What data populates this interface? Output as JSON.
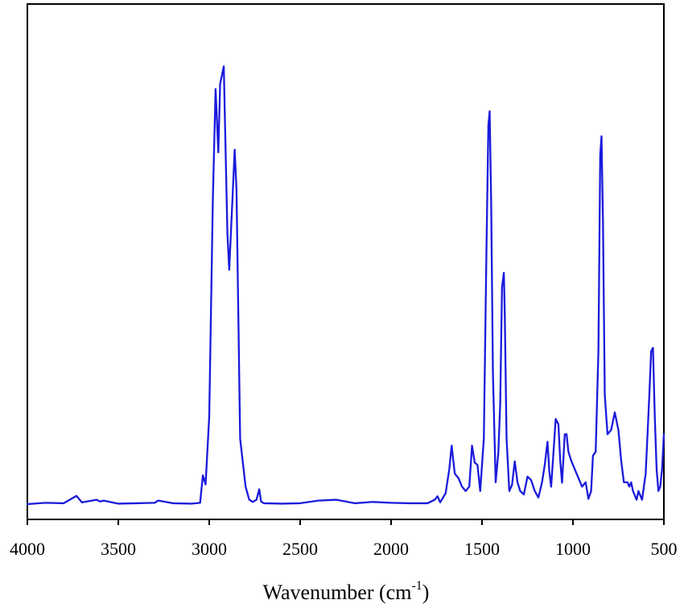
{
  "chart_data": {
    "type": "line",
    "xlabel": "Wavenumber (cm",
    "xlabel_sup": "-1",
    "xlabel_close": ")",
    "ylabel": "",
    "title": "",
    "x_reversed": true,
    "xlim": [
      4000,
      500
    ],
    "ylim": [
      0,
      1
    ],
    "x_ticks": [
      4000,
      3500,
      3000,
      2500,
      2000,
      1500,
      1000,
      500
    ],
    "x_tick_labels": [
      "4000",
      "3500",
      "3000",
      "2500",
      "2000",
      "1500",
      "1000",
      "500"
    ],
    "y_ticks_shown": false,
    "grid": false,
    "series": [
      {
        "color": "#1a1adc",
        "x": [
          4000,
          3900,
          3800,
          3730,
          3700,
          3620,
          3600,
          3580,
          3500,
          3400,
          3300,
          3280,
          3200,
          3100,
          3050,
          3035,
          3020,
          3000,
          2980,
          2965,
          2950,
          2940,
          2920,
          2900,
          2890,
          2870,
          2860,
          2850,
          2830,
          2800,
          2780,
          2760,
          2740,
          2725,
          2715,
          2700,
          2600,
          2500,
          2400,
          2300,
          2200,
          2100,
          2000,
          1900,
          1800,
          1760,
          1745,
          1730,
          1700,
          1680,
          1667,
          1650,
          1630,
          1610,
          1590,
          1570,
          1555,
          1540,
          1525,
          1510,
          1490,
          1475,
          1465,
          1458,
          1450,
          1440,
          1425,
          1410,
          1400,
          1390,
          1380,
          1375,
          1365,
          1350,
          1335,
          1320,
          1305,
          1290,
          1270,
          1250,
          1230,
          1210,
          1190,
          1170,
          1155,
          1140,
          1130,
          1120,
          1110,
          1095,
          1080,
          1070,
          1060,
          1045,
          1035,
          1025,
          1010,
          990,
          970,
          950,
          930,
          915,
          900,
          890,
          875,
          860,
          850,
          843,
          835,
          825,
          810,
          790,
          770,
          750,
          735,
          720,
          700,
          690,
          680,
          670,
          660,
          650,
          640,
          620,
          600,
          580,
          570,
          560,
          550,
          540,
          530,
          520,
          510,
          500
        ],
        "y": [
          0.0,
          0.003,
          0.002,
          0.019,
          0.004,
          0.01,
          0.006,
          0.008,
          0.001,
          0.002,
          0.003,
          0.008,
          0.002,
          0.001,
          0.003,
          0.066,
          0.045,
          0.2,
          0.7,
          0.951,
          0.806,
          0.963,
          1.003,
          0.62,
          0.537,
          0.72,
          0.812,
          0.72,
          0.15,
          0.04,
          0.01,
          0.005,
          0.01,
          0.034,
          0.006,
          0.002,
          0.001,
          0.002,
          0.008,
          0.01,
          0.002,
          0.005,
          0.003,
          0.002,
          0.002,
          0.01,
          0.018,
          0.004,
          0.025,
          0.08,
          0.134,
          0.07,
          0.06,
          0.04,
          0.03,
          0.04,
          0.134,
          0.095,
          0.09,
          0.03,
          0.15,
          0.6,
          0.868,
          0.9,
          0.7,
          0.3,
          0.05,
          0.12,
          0.23,
          0.497,
          0.53,
          0.44,
          0.15,
          0.03,
          0.044,
          0.098,
          0.05,
          0.03,
          0.022,
          0.063,
          0.055,
          0.03,
          0.015,
          0.05,
          0.09,
          0.143,
          0.075,
          0.04,
          0.1,
          0.195,
          0.183,
          0.1,
          0.049,
          0.16,
          0.16,
          0.12,
          0.1,
          0.08,
          0.06,
          0.04,
          0.05,
          0.012,
          0.03,
          0.111,
          0.12,
          0.35,
          0.8,
          0.843,
          0.65,
          0.25,
          0.16,
          0.17,
          0.21,
          0.17,
          0.1,
          0.05,
          0.05,
          0.04,
          0.05,
          0.03,
          0.02,
          0.01,
          0.03,
          0.01,
          0.07,
          0.25,
          0.35,
          0.358,
          0.2,
          0.08,
          0.03,
          0.04,
          0.08,
          0.16
        ]
      }
    ]
  }
}
